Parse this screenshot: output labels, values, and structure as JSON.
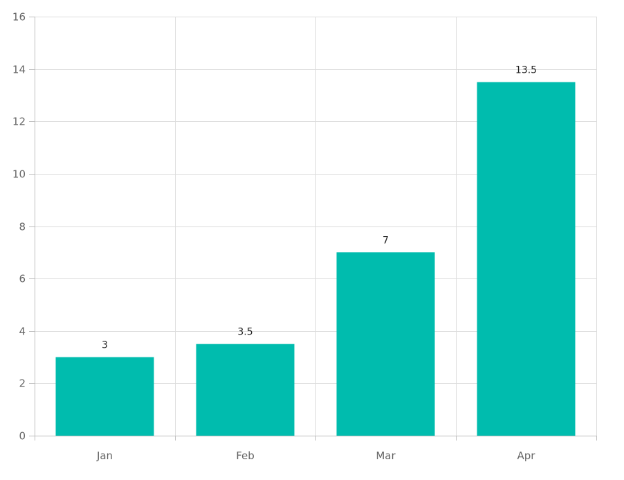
{
  "chart_data": {
    "type": "bar",
    "categories": [
      "Jan",
      "Feb",
      "Mar",
      "Apr"
    ],
    "values": [
      3,
      3.5,
      7,
      13.5
    ],
    "data_labels": [
      "3",
      "3.5",
      "7",
      "13.5"
    ],
    "ylim": [
      0,
      16
    ],
    "y_ticks": [
      0,
      2,
      4,
      6,
      8,
      10,
      12,
      14,
      16
    ],
    "y_tick_labels": [
      "0",
      "2",
      "4",
      "6",
      "8",
      "10",
      "12",
      "14",
      "16"
    ],
    "grid": true,
    "title": "",
    "xlabel": "",
    "ylabel": "",
    "colors": {
      "bar": "#00bcae",
      "grid": "#dcdcdc",
      "axis": "#bdbdbd"
    }
  }
}
